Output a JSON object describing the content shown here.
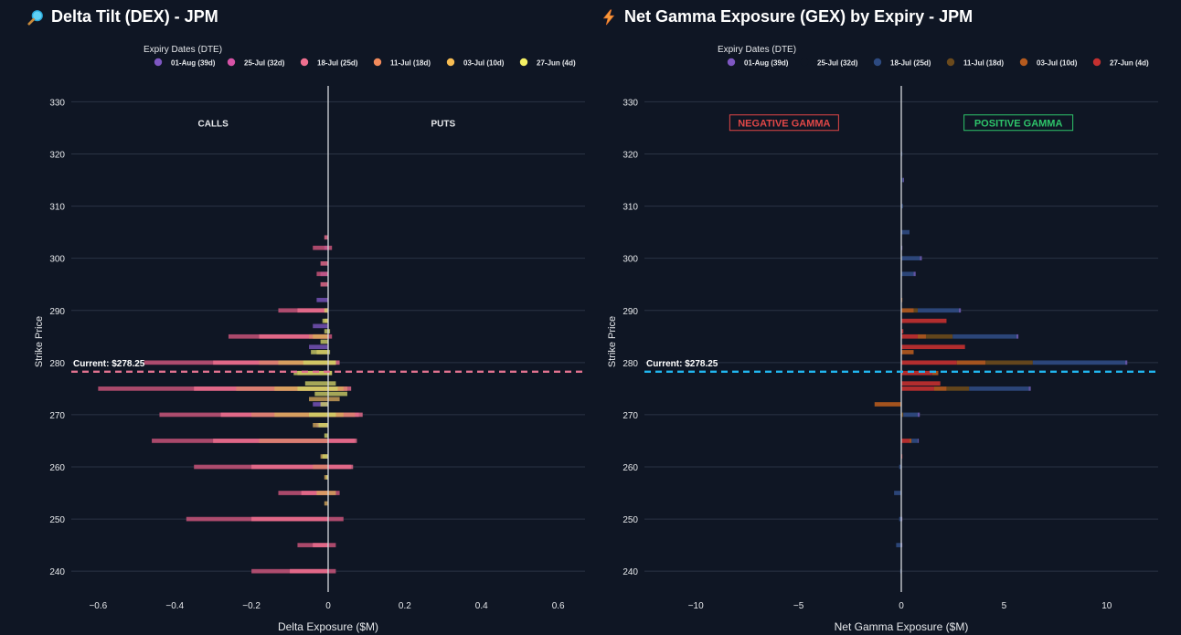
{
  "colors": {
    "background": "#0f1624",
    "grid": "#2a3344",
    "zeroline": "#d6d9de",
    "tick": "#e6e8eb",
    "dex_current_line": "#e2728f",
    "gex_current_line": "#21b6f0",
    "negative_gamma": "#e04747",
    "positive_gamma": "#2ec46a"
  },
  "chart_data": [
    {
      "type": "bar",
      "orientation": "horizontal",
      "barmode": "overlay",
      "title": "Delta Tilt (DEX) - JPM",
      "title_icon": "magnifier-icon",
      "xlabel": "Delta Exposure ($M)",
      "ylabel": "Strike Price",
      "xlim": [
        -0.67,
        0.67
      ],
      "ylim": [
        236,
        332
      ],
      "xticks": [
        -0.6,
        -0.4,
        -0.2,
        0,
        0.2,
        0.4,
        0.6
      ],
      "xtick_labels": [
        "−0.6",
        "−0.4",
        "−0.2",
        "0",
        "0.2",
        "0.4",
        "0.6"
      ],
      "yticks": [
        240,
        250,
        260,
        270,
        280,
        290,
        300,
        310,
        320,
        330
      ],
      "grid": true,
      "legend": {
        "title": "Expiry Dates (DTE)",
        "placement": "top",
        "entries": [
          {
            "label": "01-Aug (39d)",
            "color": "#7e57c2"
          },
          {
            "label": "25-Jul (32d)",
            "color": "#d653a6"
          },
          {
            "label": "18-Jul (25d)",
            "color": "#ef6f8f"
          },
          {
            "label": "11-Jul (18d)",
            "color": "#f28a5b"
          },
          {
            "label": "03-Jul (10d)",
            "color": "#f7bc52"
          },
          {
            "label": "27-Jun (4d)",
            "color": "#f5f064"
          }
        ]
      },
      "annotations": [
        {
          "text": "CALLS",
          "x": -0.3,
          "y": 326
        },
        {
          "text": "PUTS",
          "x": 0.3,
          "y": 326
        }
      ],
      "current_price": {
        "label": "Current: $278.25",
        "value": 278.25
      },
      "series": [
        {
          "name": "01-Aug (39d)",
          "color": "#7e57c2",
          "points": [
            [
              302,
              -0.01
            ],
            [
              297,
              -0.02
            ],
            [
              292,
              -0.03
            ],
            [
              287,
              -0.04
            ],
            [
              283,
              -0.05
            ],
            [
              272,
              -0.04
            ],
            [
              268,
              -0.03
            ]
          ]
        },
        {
          "name": "25-Jul (32d)",
          "color": "#d6587f",
          "points": [
            [
              302,
              -0.04
            ],
            [
              297,
              -0.03
            ],
            [
              290,
              -0.13
            ],
            [
              285,
              -0.26
            ],
            [
              280,
              -0.48
            ],
            [
              275,
              -0.6
            ],
            [
              270,
              -0.44
            ],
            [
              265,
              -0.46
            ],
            [
              260,
              -0.35
            ],
            [
              255,
              -0.13
            ],
            [
              250,
              -0.37
            ],
            [
              245,
              -0.08
            ],
            [
              240,
              -0.2
            ],
            [
              302,
              0.01
            ],
            [
              285,
              0.01
            ],
            [
              280,
              0.02
            ],
            [
              275,
              0.05
            ],
            [
              270,
              0.08
            ],
            [
              265,
              0.07
            ],
            [
              260,
              0.06
            ],
            [
              255,
              0.03
            ],
            [
              250,
              0.04
            ],
            [
              245,
              0.02
            ],
            [
              240,
              0.02
            ]
          ]
        },
        {
          "name": "18-Jul (25d)",
          "color": "#ef6f8f",
          "points": [
            [
              304,
              -0.01
            ],
            [
              299,
              -0.02
            ],
            [
              295,
              -0.02
            ],
            [
              290,
              -0.08
            ],
            [
              285,
              -0.18
            ],
            [
              280,
              -0.3
            ],
            [
              275,
              -0.35
            ],
            [
              270,
              -0.28
            ],
            [
              265,
              -0.3
            ],
            [
              260,
              -0.2
            ],
            [
              255,
              -0.07
            ],
            [
              250,
              -0.2
            ],
            [
              245,
              -0.04
            ],
            [
              240,
              -0.1
            ],
            [
              280,
              0.03
            ],
            [
              275,
              0.06
            ],
            [
              270,
              0.09
            ],
            [
              265,
              0.075
            ],
            [
              260,
              0.065
            ]
          ]
        },
        {
          "name": "11-Jul (18d)",
          "color": "#d8856a",
          "points": [
            [
              285,
              -0.05
            ],
            [
              280,
              -0.18
            ],
            [
              275,
              -0.24
            ],
            [
              270,
              -0.2
            ],
            [
              265,
              -0.18
            ],
            [
              260,
              -0.04
            ],
            [
              280,
              0.02
            ],
            [
              275,
              0.05
            ],
            [
              270,
              0.07
            ]
          ]
        },
        {
          "name": "03-Jul (10d)",
          "color": "#d6a85a",
          "points": [
            [
              288,
              -0.01
            ],
            [
              285,
              -0.04
            ],
            [
              282,
              -0.03
            ],
            [
              280,
              -0.13
            ],
            [
              278,
              -0.08
            ],
            [
              275,
              -0.14
            ],
            [
              273,
              -0.05
            ],
            [
              270,
              -0.14
            ],
            [
              268,
              -0.04
            ],
            [
              262,
              -0.02
            ],
            [
              258,
              -0.01
            ],
            [
              255,
              -0.03
            ],
            [
              253,
              -0.01
            ],
            [
              280,
              0.02
            ],
            [
              278,
              0.01
            ],
            [
              275,
              0.04
            ],
            [
              273,
              0.03
            ],
            [
              270,
              0.04
            ],
            [
              255,
              0.02
            ]
          ]
        },
        {
          "name": "27-Jun (4d)",
          "color": "#cfd166",
          "points": [
            [
              290,
              -0.01
            ],
            [
              288,
              -0.015
            ],
            [
              286,
              -0.01
            ],
            [
              284,
              -0.02
            ],
            [
              282,
              -0.045
            ],
            [
              280,
              -0.065
            ],
            [
              278,
              -0.09
            ],
            [
              276,
              -0.06
            ],
            [
              275,
              -0.08
            ],
            [
              274,
              -0.035
            ],
            [
              272,
              -0.02
            ],
            [
              270,
              -0.05
            ],
            [
              268,
              -0.025
            ],
            [
              266,
              -0.01
            ],
            [
              262,
              -0.015
            ],
            [
              258,
              -0.005
            ],
            [
              286,
              0.005
            ],
            [
              282,
              0.005
            ],
            [
              280,
              0.02
            ],
            [
              278,
              0.01
            ],
            [
              276,
              0.02
            ],
            [
              275,
              0.025
            ],
            [
              274,
              0.05
            ],
            [
              270,
              0.02
            ]
          ]
        }
      ]
    },
    {
      "type": "bar",
      "orientation": "horizontal",
      "barmode": "stack",
      "title": "Net Gamma Exposure (GEX) by Expiry - JPM",
      "title_icon": "lightning-icon",
      "xlabel": "Net Gamma Exposure ($M)",
      "ylabel": "Strike Price",
      "xlim": [
        -12.5,
        12.5
      ],
      "ylim": [
        236,
        332
      ],
      "xticks": [
        -10,
        -5,
        0,
        5,
        10
      ],
      "xtick_labels": [
        "−10",
        "−5",
        "0",
        "5",
        "10"
      ],
      "yticks": [
        240,
        250,
        260,
        270,
        280,
        290,
        300,
        310,
        320,
        330
      ],
      "grid": true,
      "legend": {
        "title": "Expiry Dates (DTE)",
        "placement": "top",
        "entries": [
          {
            "label": "01-Aug (39d)",
            "color": "#7e57c2"
          },
          {
            "label": "25-Jul (32d)",
            "color": "#0f1624"
          },
          {
            "label": "18-Jul (25d)",
            "color": "#2d4a80"
          },
          {
            "label": "11-Jul (18d)",
            "color": "#6b4a1c"
          },
          {
            "label": "03-Jul (10d)",
            "color": "#b55a1e"
          },
          {
            "label": "27-Jun (4d)",
            "color": "#c43030"
          }
        ]
      },
      "annotations": [
        {
          "text": "NEGATIVE GAMMA",
          "x": -5.7,
          "y": 326,
          "style": "negative"
        },
        {
          "text": "POSITIVE GAMMA",
          "x": 5.7,
          "y": 326,
          "style": "positive"
        }
      ],
      "current_price": {
        "label": "Current: $278.25",
        "value": 278.25
      },
      "stack_order": [
        "27-Jun (4d)",
        "03-Jul (10d)",
        "11-Jul (18d)",
        "18-Jul (25d)",
        "25-Jul (32d)",
        "01-Aug (39d)"
      ],
      "series": [
        {
          "name": "01-Aug (39d)",
          "color": "#6a5ab0",
          "values": [
            [
              315,
              0.05
            ],
            [
              302,
              0.05
            ],
            [
              300,
              0.1
            ],
            [
              297,
              0.1
            ],
            [
              290,
              0.1
            ],
            [
              285,
              0.1
            ],
            [
              280,
              0.1
            ],
            [
              275,
              0.1
            ],
            [
              270,
              0.1
            ],
            [
              265,
              0.05
            ],
            [
              250,
              0.05
            ],
            [
              245,
              0.05
            ]
          ]
        },
        {
          "name": "25-Jul (32d)",
          "color": "#0f1624",
          "values": []
        },
        {
          "name": "18-Jul (25d)",
          "color": "#2f4a82",
          "values": [
            [
              320,
              0.05
            ],
            [
              315,
              0.08
            ],
            [
              310,
              0.08
            ],
            [
              305,
              0.4
            ],
            [
              300,
              0.9
            ],
            [
              297,
              0.6
            ],
            [
              290,
              2.0
            ],
            [
              285,
              3.1
            ],
            [
              280,
              4.5
            ],
            [
              275,
              2.9
            ],
            [
              270,
              0.7
            ],
            [
              265,
              0.3
            ],
            [
              260,
              -0.1
            ],
            [
              255,
              -0.35
            ],
            [
              250,
              -0.1
            ],
            [
              245,
              -0.25
            ],
            [
              240,
              -0.05
            ]
          ]
        },
        {
          "name": "11-Jul (18d)",
          "color": "#6b4a1c",
          "values": [
            [
              290,
              0.2
            ],
            [
              285,
              1.3
            ],
            [
              280,
              2.3
            ],
            [
              275,
              1.1
            ],
            [
              270,
              0.1
            ]
          ]
        },
        {
          "name": "03-Jul (10d)",
          "color": "#b55a1e",
          "values": [
            [
              292,
              0.05
            ],
            [
              290,
              0.6
            ],
            [
              285,
              0.4
            ],
            [
              282,
              0.6
            ],
            [
              280,
              1.4
            ],
            [
              278,
              0.3
            ],
            [
              275,
              0.6
            ],
            [
              272,
              -1.3
            ],
            [
              265,
              0.1
            ]
          ]
        },
        {
          "name": "27-Jun (4d)",
          "color": "#c43030",
          "values": [
            [
              288,
              2.2
            ],
            [
              286,
              0.1
            ],
            [
              285,
              0.8
            ],
            [
              283,
              3.1
            ],
            [
              280,
              2.7
            ],
            [
              278,
              1.5
            ],
            [
              276,
              1.9
            ],
            [
              275,
              1.6
            ],
            [
              265,
              0.4
            ],
            [
              262,
              0.05
            ]
          ]
        }
      ]
    }
  ]
}
